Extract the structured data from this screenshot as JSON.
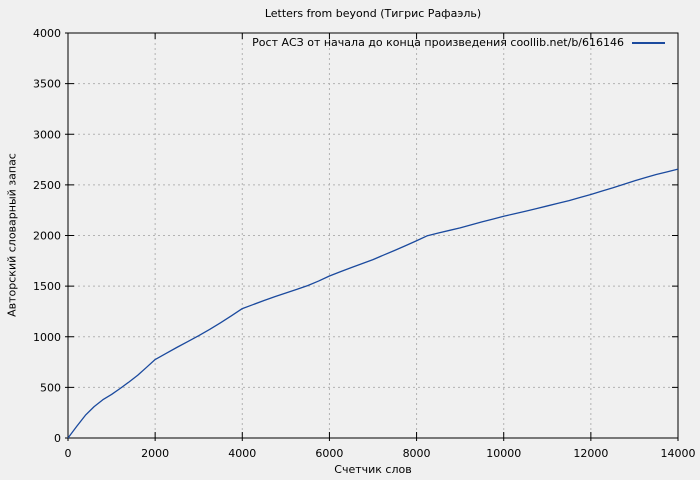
{
  "chart_data": {
    "type": "line",
    "title": "Letters from beyond (Тигрис Рафаэль)",
    "xlabel": "Счетчик слов",
    "ylabel": "Авторский словарный запас",
    "legend_label": "Рост АСЗ от начала до конца произведения coollib.net/b/616146",
    "legend_position": "top-right-inside",
    "xlim": [
      0,
      14000
    ],
    "ylim": [
      0,
      4000
    ],
    "xticks": [
      0,
      2000,
      4000,
      6000,
      8000,
      10000,
      12000,
      14000
    ],
    "yticks": [
      0,
      500,
      1000,
      1500,
      2000,
      2500,
      3000,
      3500,
      4000
    ],
    "grid": true,
    "grid_style": "dashed",
    "colors": {
      "background": "#f0f0f0",
      "border": "#000000",
      "grid": "#b3b3b3",
      "text": "#000000",
      "line": "#1b4a9e"
    },
    "series": [
      {
        "name": "Рост АСЗ от начала до конца произведения coollib.net/b/616146",
        "color": "#1b4a9e",
        "x": [
          0,
          200,
          400,
          600,
          800,
          1000,
          1200,
          1400,
          1600,
          1800,
          2000,
          2250,
          2500,
          2750,
          3000,
          3250,
          3500,
          3750,
          4000,
          4250,
          4500,
          4750,
          5000,
          5250,
          5500,
          5750,
          6000,
          6250,
          6500,
          6750,
          7000,
          7250,
          7500,
          7750,
          8000,
          8250,
          8500,
          8750,
          9000,
          9250,
          9500,
          9750,
          10000,
          10250,
          10500,
          10750,
          11000,
          11250,
          11500,
          11750,
          12000,
          12250,
          12500,
          12750,
          13000,
          13250,
          13500,
          13750,
          14000
        ],
        "y": [
          0,
          115,
          225,
          310,
          378,
          430,
          490,
          553,
          620,
          697,
          775,
          835,
          895,
          952,
          1010,
          1072,
          1138,
          1207,
          1278,
          1318,
          1358,
          1396,
          1432,
          1468,
          1505,
          1550,
          1600,
          1642,
          1683,
          1722,
          1762,
          1808,
          1853,
          1900,
          1948,
          1998,
          2025,
          2050,
          2075,
          2105,
          2135,
          2162,
          2190,
          2215,
          2240,
          2265,
          2292,
          2318,
          2345,
          2375,
          2405,
          2438,
          2470,
          2505,
          2540,
          2572,
          2602,
          2628,
          2655
        ]
      }
    ]
  }
}
